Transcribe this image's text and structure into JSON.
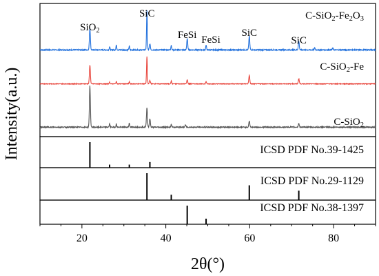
{
  "chart_data": {
    "type": "line",
    "xlabel": "2θ(°)",
    "ylabel": "Intensity(a.u.)",
    "xlim": [
      10,
      90
    ],
    "x_ticks": [
      20,
      40,
      60,
      80
    ],
    "series": [
      {
        "name": "C-SiO2-Fe2O3",
        "label_parts": [
          "C-SiO",
          "2",
          "-Fe",
          "2",
          "O",
          "3"
        ],
        "color": "#1f6fdc",
        "peaks": [
          {
            "x": 21.9,
            "h": 0.55,
            "w": 0.3
          },
          {
            "x": 26.6,
            "h": 0.08,
            "w": 0.25
          },
          {
            "x": 28.2,
            "h": 0.12,
            "w": 0.25
          },
          {
            "x": 31.3,
            "h": 0.1,
            "w": 0.25
          },
          {
            "x": 35.5,
            "h": 1.0,
            "w": 0.25
          },
          {
            "x": 36.2,
            "h": 0.15,
            "w": 0.3
          },
          {
            "x": 41.3,
            "h": 0.12,
            "w": 0.25
          },
          {
            "x": 45.1,
            "h": 0.28,
            "w": 0.3
          },
          {
            "x": 49.6,
            "h": 0.12,
            "w": 0.25
          },
          {
            "x": 59.9,
            "h": 0.35,
            "w": 0.3
          },
          {
            "x": 71.7,
            "h": 0.22,
            "w": 0.3
          },
          {
            "x": 75.5,
            "h": 0.05,
            "w": 0.3
          },
          {
            "x": 79.8,
            "h": 0.04,
            "w": 0.3
          }
        ]
      },
      {
        "name": "C-SiO2-Fe",
        "label_parts": [
          "C-SiO",
          "2",
          "-Fe"
        ],
        "color": "#e8453c",
        "peaks": [
          {
            "x": 21.9,
            "h": 0.65,
            "w": 0.3
          },
          {
            "x": 26.6,
            "h": 0.06,
            "w": 0.25
          },
          {
            "x": 28.2,
            "h": 0.08,
            "w": 0.25
          },
          {
            "x": 31.3,
            "h": 0.07,
            "w": 0.25
          },
          {
            "x": 35.5,
            "h": 0.95,
            "w": 0.25
          },
          {
            "x": 36.2,
            "h": 0.12,
            "w": 0.3
          },
          {
            "x": 41.3,
            "h": 0.1,
            "w": 0.25
          },
          {
            "x": 45.1,
            "h": 0.14,
            "w": 0.3
          },
          {
            "x": 49.6,
            "h": 0.08,
            "w": 0.25
          },
          {
            "x": 59.9,
            "h": 0.3,
            "w": 0.3
          },
          {
            "x": 71.7,
            "h": 0.18,
            "w": 0.3
          }
        ]
      },
      {
        "name": "C-SiO2",
        "label_parts": [
          "C-SiO",
          "2"
        ],
        "color": "#555555",
        "peaks": [
          {
            "x": 21.9,
            "h": 1.0,
            "w": 0.3
          },
          {
            "x": 26.6,
            "h": 0.08,
            "w": 0.25
          },
          {
            "x": 28.2,
            "h": 0.07,
            "w": 0.25
          },
          {
            "x": 31.3,
            "h": 0.1,
            "w": 0.25
          },
          {
            "x": 35.5,
            "h": 0.48,
            "w": 0.3
          },
          {
            "x": 36.2,
            "h": 0.2,
            "w": 0.3
          },
          {
            "x": 41.3,
            "h": 0.06,
            "w": 0.25
          },
          {
            "x": 44.7,
            "h": 0.05,
            "w": 0.3
          },
          {
            "x": 59.9,
            "h": 0.15,
            "w": 0.3
          },
          {
            "x": 71.7,
            "h": 0.09,
            "w": 0.3
          }
        ]
      }
    ],
    "peak_labels": [
      {
        "parts": [
          "SiO",
          "2"
        ],
        "x": 21.9
      },
      {
        "parts": [
          "SiC"
        ],
        "x": 35.5
      },
      {
        "parts": [
          "FeSi"
        ],
        "x": 45.1
      },
      {
        "parts": [
          "FeSi"
        ],
        "x": 49.6
      },
      {
        "parts": [
          "SiC"
        ],
        "x": 59.9
      },
      {
        "parts": [
          "SiC"
        ],
        "x": 71.7
      }
    ],
    "references": [
      {
        "label": "ICSD PDF No.39-1425",
        "sticks": [
          {
            "x": 21.9,
            "h": 1.0
          },
          {
            "x": 26.6,
            "h": 0.12
          },
          {
            "x": 31.3,
            "h": 0.12
          },
          {
            "x": 36.2,
            "h": 0.22
          }
        ]
      },
      {
        "label": "ICSD PDF No.29-1129",
        "sticks": [
          {
            "x": 35.5,
            "h": 1.0
          },
          {
            "x": 41.3,
            "h": 0.2
          },
          {
            "x": 59.9,
            "h": 0.55
          },
          {
            "x": 71.7,
            "h": 0.35
          }
        ]
      },
      {
        "label": "ICSD PDF No.38-1397",
        "sticks": [
          {
            "x": 45.1,
            "h": 1.0
          },
          {
            "x": 49.6,
            "h": 0.3
          }
        ]
      }
    ]
  }
}
